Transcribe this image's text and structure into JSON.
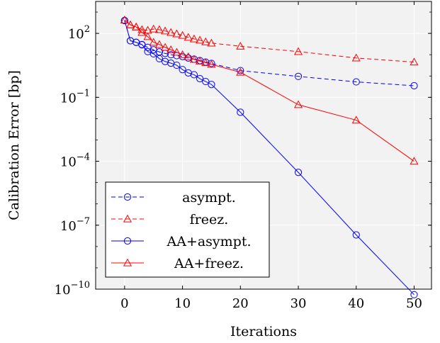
{
  "chart_data": {
    "type": "line",
    "xlabel": "Iterations",
    "ylabel": "Calibration Error [bp]",
    "xlim": [
      -5,
      53
    ],
    "ylim": [
      -10,
      3.5
    ],
    "y_scale": "log",
    "grid": true,
    "legend_position": "bottom-left",
    "x_ticks": [
      0,
      10,
      20,
      30,
      40,
      50
    ],
    "y_ticks": [
      {
        "exponent": -10,
        "label": "10",
        "sup": "−10"
      },
      {
        "exponent": -7,
        "label": "10",
        "sup": "−7"
      },
      {
        "exponent": -4,
        "label": "10",
        "sup": "−4"
      },
      {
        "exponent": -1,
        "label": "10",
        "sup": "−1"
      },
      {
        "exponent": 2,
        "label": "10",
        "sup": "2"
      }
    ],
    "series": [
      {
        "name": "asympt.",
        "color": "#0000ff",
        "dash": true,
        "marker": "circle",
        "x": [
          0,
          1,
          2,
          3,
          4,
          5,
          6,
          7,
          8,
          9,
          10,
          11,
          12,
          13,
          14,
          15,
          20,
          30,
          40,
          50
        ],
        "y": [
          400,
          45,
          38,
          29,
          22,
          17,
          13.5,
          11.5,
          10,
          9,
          8.2,
          7,
          6.2,
          5.3,
          4.5,
          3.9,
          1.8,
          0.96,
          0.53,
          0.35
        ]
      },
      {
        "name": "freez.",
        "color": "#ff0000",
        "dash": true,
        "marker": "triangle",
        "x": [
          0,
          1,
          2,
          3,
          4,
          5,
          6,
          7,
          8,
          9,
          10,
          11,
          12,
          13,
          14,
          15,
          20,
          30,
          40,
          50
        ],
        "y": [
          420,
          250,
          200,
          150,
          140,
          160,
          150,
          130,
          110,
          95,
          80,
          65,
          55,
          48,
          40,
          35,
          25,
          14,
          7,
          4.5
        ]
      },
      {
        "name": "AA+asympt.",
        "color": "#0000ff",
        "dash": false,
        "marker": "circle",
        "x": [
          0,
          1,
          2,
          3,
          4,
          5,
          6,
          7,
          8,
          9,
          10,
          11,
          12,
          13,
          14,
          15,
          20,
          30,
          40,
          50
        ],
        "y": [
          400,
          45,
          38,
          30,
          14,
          11,
          6.5,
          4.8,
          4.0,
          3.2,
          2.0,
          1.4,
          1.15,
          0.75,
          0.55,
          0.4,
          0.02,
          3e-05,
          3.5e-08,
          5.5e-11
        ]
      },
      {
        "name": "AA+freez.",
        "color": "#ff0000",
        "dash": false,
        "marker": "triangle",
        "x": [
          0,
          1,
          2,
          3,
          4,
          5,
          6,
          7,
          8,
          9,
          10,
          11,
          12,
          13,
          14,
          15,
          20,
          30,
          40,
          50
        ],
        "y": [
          420,
          250,
          200,
          110,
          70,
          38,
          30,
          22,
          17,
          13,
          10,
          8,
          6,
          5,
          4.2,
          3.5,
          1.5,
          0.045,
          0.0085,
          0.0001
        ]
      }
    ]
  }
}
